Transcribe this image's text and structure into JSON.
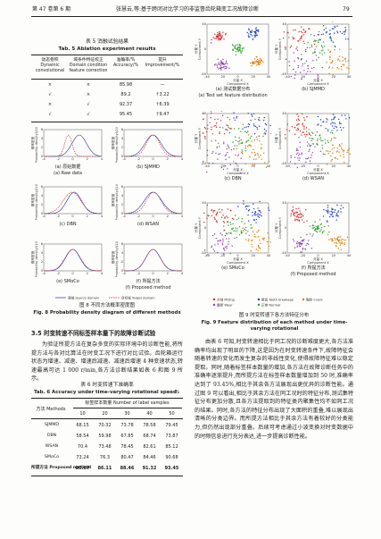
{
  "header": {
    "volume": "第 47 卷第 6 期",
    "running_title": "张慧云,等:基于跨闭对比学习的非监督齿轮箱变工况故障诊断",
    "page": "79"
  },
  "table5": {
    "title_cn": "表 5  消融试验结果",
    "title_en": "Tab. 5  Ablation experiment results",
    "columns": [
      "动态卷积 Dynamic convolutional",
      "域条件特征校正 Domain condition feature correction",
      "准确率/% Accuracy/%",
      "提升 Improvement/%"
    ],
    "rows": [
      [
        "×",
        "×",
        85.98,
        "—"
      ],
      [
        "√",
        "×",
        89.2,
        "↑3.22"
      ],
      [
        "×",
        "√",
        92.37,
        "↑6.39"
      ],
      [
        "√",
        "√",
        95.45,
        "↑9.47"
      ]
    ]
  },
  "figure8": {
    "panels": [
      [
        "(a) 原始数据",
        "(a) Raw data"
      ],
      [
        "(b) SJMMD"
      ],
      [
        "(c) DBN"
      ],
      [
        "(d) WSAN"
      ],
      [
        "(e) SMoCo"
      ],
      [
        "(f) 所提方法",
        "(f) Proposed method"
      ]
    ],
    "y_label_cn": "概率密度",
    "y_label_en": "Probability density/(10⁻²)",
    "xticks": [
      -4,
      -2,
      0,
      2,
      4
    ],
    "yticks": [
      0,
      2,
      4,
      6
    ],
    "legend": [
      "源域 Source domain",
      "目标域 Target domain"
    ],
    "caption_cn": "图 8  不同方法概率密度图",
    "caption_en": "Fig. 8  Probability density diagram of different methods"
  },
  "figure9": {
    "panels": [
      [
        "(a) 测试数据分布",
        "(a) Test set feature distribution"
      ],
      [
        "(b) SJMMD"
      ],
      [
        "(c) DBN"
      ],
      [
        "(d) WSAN"
      ],
      [
        "(e) SMoCo"
      ],
      [
        "(f) 所提方法",
        "(f) Proposed method"
      ]
    ],
    "x_label_cn": "分量 X",
    "x_label_en": "Component X",
    "y_label_cn": "分量 Y",
    "y_label_en": "Component Y",
    "xticks": [
      -40,
      -20,
      0,
      20,
      40
    ],
    "yticks": [
      -40,
      0,
      40
    ],
    "legend": [
      "点蚀 Pitting",
      "断齿 Tooth breakage",
      "裂纹 Crack",
      "磨损 Wear",
      "正常 Normal"
    ],
    "caption_cn": "图 9  时变转速下各方法特征分布",
    "caption_en": "Fig. 9  Feature distribution of each method under time-varying rotational"
  },
  "section": {
    "heading": "3.5  时变转速不同标签样本量下的故障诊断试验",
    "paragraph": "为验证所提方法在复杂多变的实际环境中的诊断性能,将所提方法与各对比算法在时变工况下进行对比试验。齿轮箱运行状态为增速、减速、增速后减速、减速后增速 4 种变速状态,转速最高可达 1 000 r/min,各方法诊断结果如表 6 和图 9 所示。"
  },
  "table6": {
    "title_cn": "表 6  时变转速下准确率",
    "title_en": "Tab. 6  Accuracy under time-varying rotational speed",
    "unit": "%",
    "method_header": "方法 Methods",
    "group_header": "标签样本数量 Number of label samples",
    "sample_counts": [
      10,
      20,
      30,
      40,
      50
    ],
    "rows": [
      [
        "SJMMD",
        68.15,
        70.32,
        73.78,
        78.58,
        79.45
      ],
      [
        "DBN",
        58.54,
        59.98,
        67.85,
        68.74,
        73.87
      ],
      [
        "WSAN",
        70.4,
        73.48,
        78.45,
        82.61,
        85.12
      ],
      [
        "SMoCo",
        73.24,
        76.3,
        80.47,
        84.46,
        90.68
      ],
      [
        "所提方法 Proposed method",
        80.67,
        86.11,
        88.46,
        91.32,
        93.45
      ]
    ]
  },
  "discussion": "由表 6 可知,时变转速相比于同工况的诊断难度更大,各方法准确率均出现了明显的下降,这是因为在时变转速条件下,故障特征会随着转速的变化而发生复杂的非线性变化,使得故障特征难以稳定提取。同时,随着标签样本数量的增加,各方法在故障诊断任务中的准确率逐渐提升,而所提方法在标签样本数量增加到 50 时,准确率达到了 93.45%,相比于其余各方法展现出更优异的诊断性能。通过图 9 可以看出,相比于其余方法在同工况时的特征分布,测试集特征分布更加分散,且各方法提取到的特征类内聚集性均不如同工况的结果。同时,各方法的特征分布出现了大面积的重叠,难以展现出清晰的分类边界。而所提方法相比于其余方法有着较好的分类能力,但仍然出现部分重叠。后续可考虑通过小波变换对时变数据中的时频信息进行充分表达,进一步提高诊断性能。"
}
